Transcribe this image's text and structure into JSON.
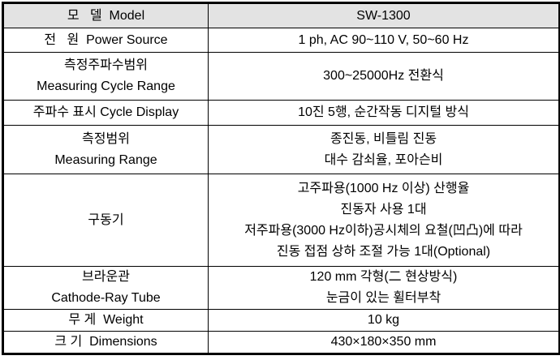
{
  "table": {
    "title": "SW-1300 specification table",
    "columns": {
      "label_header": "모   델  Model",
      "value_header": "SW-1300"
    },
    "rows": [
      {
        "label": "모   델  Model",
        "value": "SW-1300"
      },
      {
        "label": "전   원  Power Source",
        "value": "1 ph, AC 90~110 V, 50~60 Hz"
      },
      {
        "label": "측정주파수범위\nMeasuring Cycle Range",
        "value": "300~25000Hz 전환식"
      },
      {
        "label": "주파수 표시 Cycle Display",
        "value": "10진 5행, 순간작동 디지털 방식"
      },
      {
        "label": "측정범위\nMeasuring Range",
        "value": "종진동, 비틀림 진동\n대수 감쇠율, 포아슨비"
      },
      {
        "label": "구동기",
        "value": "고주파용(1000 Hz 이상) 산행율\n진동자 사용 1대\n저주파용(3000 Hz이하)공시체의 요철(凹凸)에 따라\n진동 접점 상하 조절 가능 1대(Optional)"
      },
      {
        "label": "브라운관\nCathode-Ray Tube",
        "value": "120 mm 각형(二 현상방식)\n눈금이 있는 휠터부착"
      },
      {
        "label": "무 게  Weight",
        "value": "10 kg"
      },
      {
        "label": "크 기  Dimensions",
        "value": "430×180×350 mm"
      }
    ],
    "colors": {
      "header_bg": "#e3e3e3",
      "border": "#000000",
      "text": "#000000",
      "cell_bg": "#ffffff"
    }
  }
}
